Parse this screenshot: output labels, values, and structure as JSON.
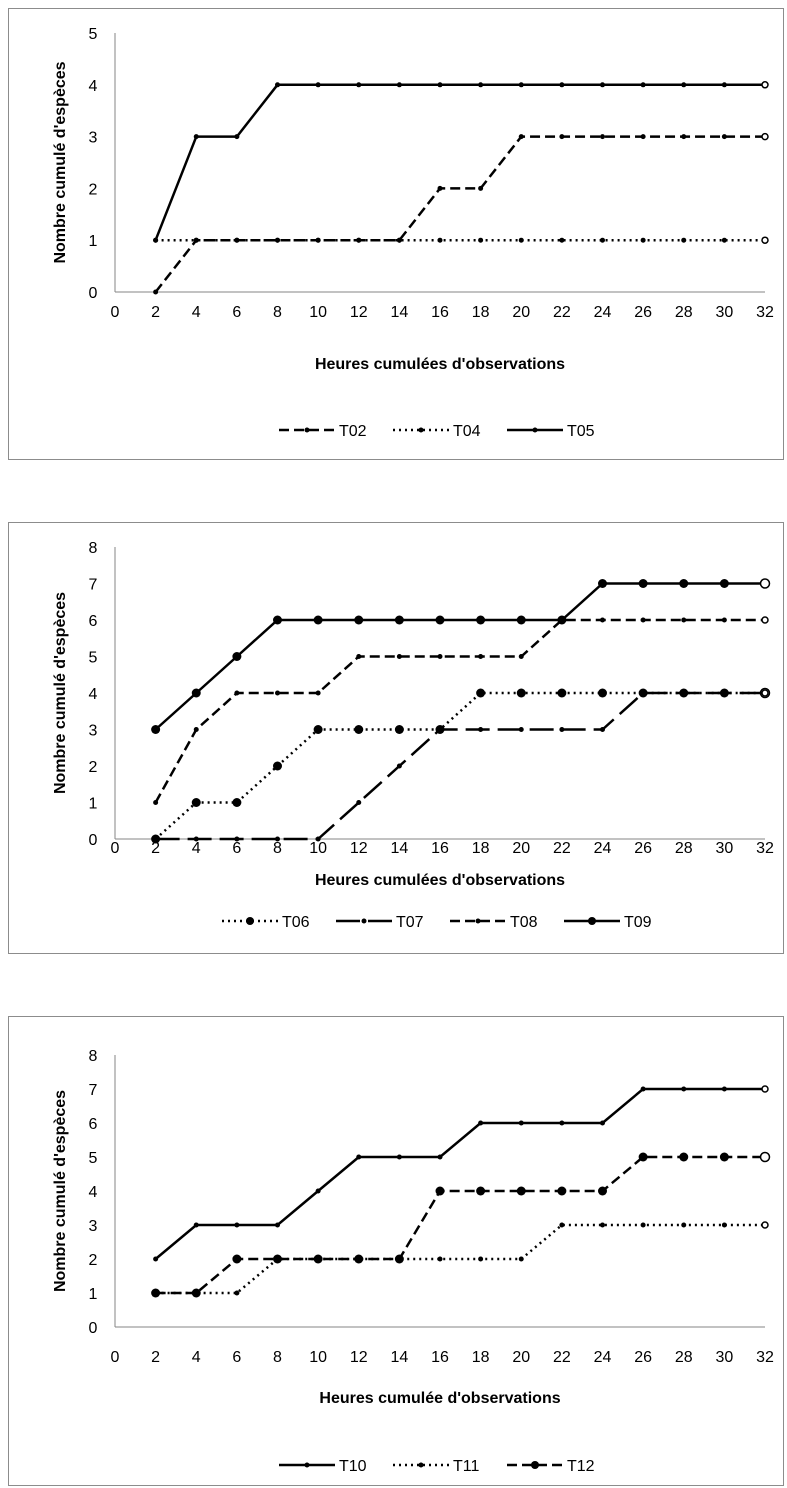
{
  "chart_data": [
    {
      "type": "line",
      "xlabel": "Heures cumulées d'observations",
      "ylabel": "Nombre cumulé d'espèces",
      "x": [
        2,
        4,
        6,
        8,
        10,
        12,
        14,
        16,
        18,
        20,
        22,
        24,
        26,
        28,
        30,
        32
      ],
      "x_ticks": [
        0,
        2,
        4,
        6,
        8,
        10,
        12,
        14,
        16,
        18,
        20,
        22,
        24,
        26,
        28,
        30,
        32
      ],
      "y_ticks": [
        0,
        1,
        2,
        3,
        4,
        5
      ],
      "xlim": [
        0,
        32
      ],
      "ylim": [
        0,
        5
      ],
      "grid": false,
      "legend_position": "bottom",
      "series": [
        {
          "name": "T02",
          "style": "dashed",
          "marker": "small-dot",
          "values": [
            0,
            1,
            1,
            1,
            1,
            1,
            1,
            2,
            2,
            3,
            3,
            3,
            3,
            3,
            3,
            3
          ]
        },
        {
          "name": "T04",
          "style": "dotted",
          "marker": "small-dot",
          "values": [
            1,
            1,
            1,
            1,
            1,
            1,
            1,
            1,
            1,
            1,
            1,
            1,
            1,
            1,
            1,
            1
          ]
        },
        {
          "name": "T05",
          "style": "solid",
          "marker": "small-dot",
          "values": [
            1,
            3,
            3,
            4,
            4,
            4,
            4,
            4,
            4,
            4,
            4,
            4,
            4,
            4,
            4,
            4
          ]
        }
      ]
    },
    {
      "type": "line",
      "xlabel": "Heures cumulées d'observations",
      "ylabel": "Nombre cumulé d'espèces",
      "x": [
        2,
        4,
        6,
        8,
        10,
        12,
        14,
        16,
        18,
        20,
        22,
        24,
        26,
        28,
        30,
        32
      ],
      "x_ticks": [
        0,
        2,
        4,
        6,
        8,
        10,
        12,
        14,
        16,
        18,
        20,
        22,
        24,
        26,
        28,
        30,
        32
      ],
      "y_ticks": [
        0,
        1,
        2,
        3,
        4,
        5,
        6,
        7,
        8
      ],
      "xlim": [
        0,
        32
      ],
      "ylim": [
        0,
        8
      ],
      "grid": false,
      "legend_position": "bottom",
      "series": [
        {
          "name": "T06",
          "style": "dotted",
          "marker": "big-dot",
          "values": [
            0,
            1,
            1,
            2,
            3,
            3,
            3,
            3,
            4,
            4,
            4,
            4,
            4,
            4,
            4,
            4
          ]
        },
        {
          "name": "T07",
          "style": "longdash",
          "marker": "small-dot",
          "values": [
            0,
            0,
            0,
            0,
            0,
            1,
            2,
            3,
            3,
            3,
            3,
            3,
            4,
            4,
            4,
            4
          ]
        },
        {
          "name": "T08",
          "style": "dashed",
          "marker": "small-dot",
          "values": [
            1,
            3,
            4,
            4,
            4,
            5,
            5,
            5,
            5,
            5,
            6,
            6,
            6,
            6,
            6,
            6
          ]
        },
        {
          "name": "T09",
          "style": "solid",
          "marker": "big-dot",
          "values": [
            3,
            4,
            5,
            6,
            6,
            6,
            6,
            6,
            6,
            6,
            6,
            7,
            7,
            7,
            7,
            7
          ]
        }
      ]
    },
    {
      "type": "line",
      "xlabel": "Heures cumulée d'observations",
      "ylabel": "Nombre cumulé d'espèces",
      "x": [
        2,
        4,
        6,
        8,
        10,
        12,
        14,
        16,
        18,
        20,
        22,
        24,
        26,
        28,
        30,
        32
      ],
      "x_ticks": [
        0,
        2,
        4,
        6,
        8,
        10,
        12,
        14,
        16,
        18,
        20,
        22,
        24,
        26,
        28,
        30,
        32
      ],
      "y_ticks": [
        0,
        1,
        2,
        3,
        4,
        5,
        6,
        7,
        8
      ],
      "xlim": [
        0,
        32
      ],
      "ylim": [
        0,
        8
      ],
      "grid": false,
      "legend_position": "bottom",
      "series": [
        {
          "name": "T10",
          "style": "solid",
          "marker": "small-dot",
          "values": [
            2,
            3,
            3,
            3,
            4,
            5,
            5,
            5,
            6,
            6,
            6,
            6,
            7,
            7,
            7,
            7
          ]
        },
        {
          "name": "T11",
          "style": "dotted",
          "marker": "small-dot",
          "values": [
            1,
            1,
            1,
            2,
            2,
            2,
            2,
            2,
            2,
            2,
            3,
            3,
            3,
            3,
            3,
            3
          ]
        },
        {
          "name": "T12",
          "style": "dashed",
          "marker": "big-dot",
          "values": [
            1,
            1,
            2,
            2,
            2,
            2,
            2,
            4,
            4,
            4,
            4,
            4,
            5,
            5,
            5,
            5
          ]
        }
      ]
    }
  ]
}
